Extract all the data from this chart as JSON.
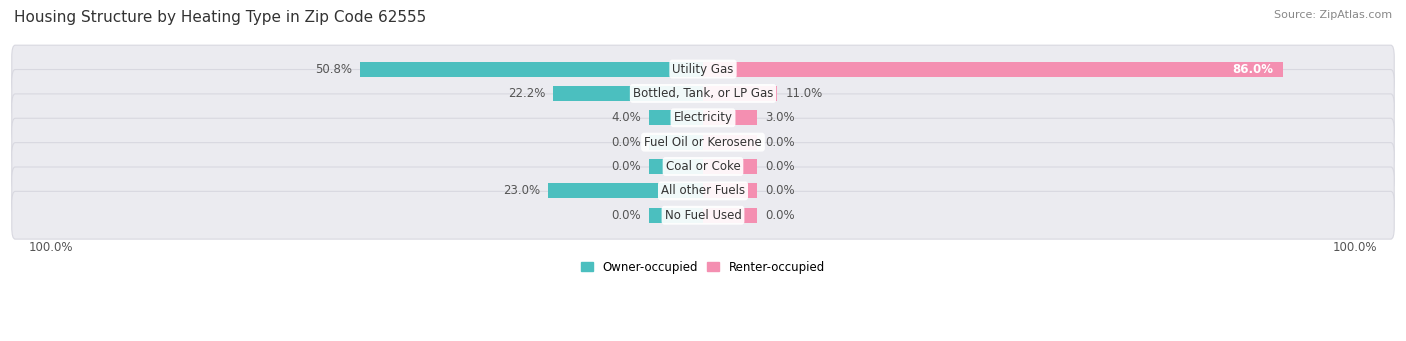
{
  "title": "Housing Structure by Heating Type in Zip Code 62555",
  "source": "Source: ZipAtlas.com",
  "categories": [
    "Utility Gas",
    "Bottled, Tank, or LP Gas",
    "Electricity",
    "Fuel Oil or Kerosene",
    "Coal or Coke",
    "All other Fuels",
    "No Fuel Used"
  ],
  "owner_values": [
    50.8,
    22.2,
    4.0,
    0.0,
    0.0,
    23.0,
    0.0
  ],
  "renter_values": [
    86.0,
    11.0,
    3.0,
    0.0,
    0.0,
    0.0,
    0.0
  ],
  "owner_color": "#4bbfbf",
  "renter_color": "#f48fb1",
  "bar_height": 0.62,
  "background_color": "#ffffff",
  "row_bg_color": "#ebebf0",
  "row_border_color": "#d8d8e0",
  "max_value": 100.0,
  "min_bar_width": 8.0,
  "title_fontsize": 11,
  "source_fontsize": 8,
  "label_fontsize": 8.5,
  "category_fontsize": 8.5,
  "axis_label": "100.0%"
}
